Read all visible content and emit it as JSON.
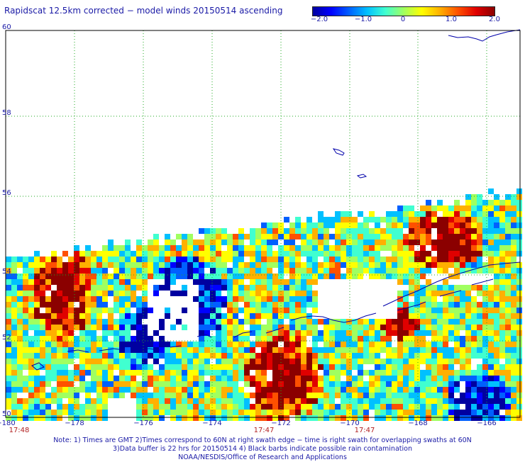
{
  "title": "Rapidscat 12.5km corrected − model winds 20150514 ascending",
  "colorbar": {
    "labels": [
      "−2.0",
      "−1.0",
      "0",
      "1.0",
      "2.0"
    ],
    "colors": [
      "#0000a0",
      "#0000ff",
      "#0060ff",
      "#00c0ff",
      "#40ffd0",
      "#a0ff60",
      "#ffff00",
      "#ffb000",
      "#ff5000",
      "#e00000",
      "#8b0000"
    ]
  },
  "lon_labels": [
    "−180",
    "−178",
    "−176",
    "−174",
    "−172",
    "−170",
    "−168",
    "−166"
  ],
  "lat_labels": [
    "50",
    "52",
    "54",
    "56",
    "58",
    "60"
  ],
  "time_labels": [
    "17:48",
    "17:47",
    "17:47"
  ],
  "notes": [
    "Note: 1) Times are GMT 2)Times correspond to 60N at right swath edge − time is right swath for overlapping swaths at 60N",
    "3)Data buffer is 22 hrs for 20150514 4) Black barbs indicate possible rain contamination",
    "NOAA/NESDIS/Office of Research and Applications"
  ],
  "colors": {
    "grid": "#22aa22",
    "coastline": "#0000aa",
    "text": "#1a1aa6",
    "time": "#b22222"
  }
}
